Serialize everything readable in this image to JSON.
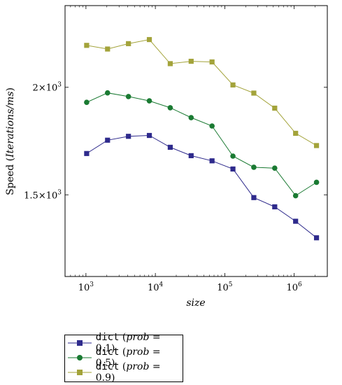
{
  "chart_data": {
    "type": "line",
    "xlabel": "size",
    "ylabel_prefix": "Speed (",
    "ylabel_italic": "Iterations/ms",
    "ylabel_suffix": ")",
    "x_scale": "log",
    "xlim": [
      500,
      3000000
    ],
    "ylim": [
      1120,
      2380
    ],
    "x_ticks": [
      {
        "value": 1000,
        "base": "10",
        "exp": "3"
      },
      {
        "value": 10000,
        "base": "10",
        "exp": "4"
      },
      {
        "value": 100000,
        "base": "10",
        "exp": "5"
      },
      {
        "value": 1000000,
        "base": "10",
        "exp": "6"
      }
    ],
    "y_ticks": [
      {
        "value": 1500,
        "mantissa": "1.5",
        "exp": "3"
      },
      {
        "value": 2000,
        "mantissa": "2",
        "exp": "3"
      }
    ],
    "grid": false,
    "legend_position": "below",
    "x": [
      1024,
      2048,
      4096,
      8192,
      16384,
      32768,
      65536,
      131072,
      262144,
      524288,
      1048576,
      2097152
    ],
    "series": [
      {
        "name": "dict",
        "param": "prob",
        "param_value": "0.1",
        "color": "#2e2a8c",
        "marker": "square",
        "values": [
          1692,
          1754,
          1772,
          1776,
          1721,
          1682,
          1658,
          1620,
          1487,
          1444,
          1377,
          1300
        ]
      },
      {
        "name": "dict",
        "param": "prob",
        "param_value": "0.5",
        "color": "#1a7a32",
        "marker": "circle",
        "values": [
          1930,
          1974,
          1957,
          1937,
          1905,
          1859,
          1820,
          1680,
          1628,
          1624,
          1496,
          1558
        ]
      },
      {
        "name": "dict",
        "param": "prob",
        "param_value": "0.9",
        "color": "#a3a33a",
        "marker": "square",
        "values": [
          2195,
          2178,
          2203,
          2222,
          2110,
          2121,
          2118,
          2011,
          1973,
          1903,
          1786,
          1729
        ]
      }
    ]
  }
}
